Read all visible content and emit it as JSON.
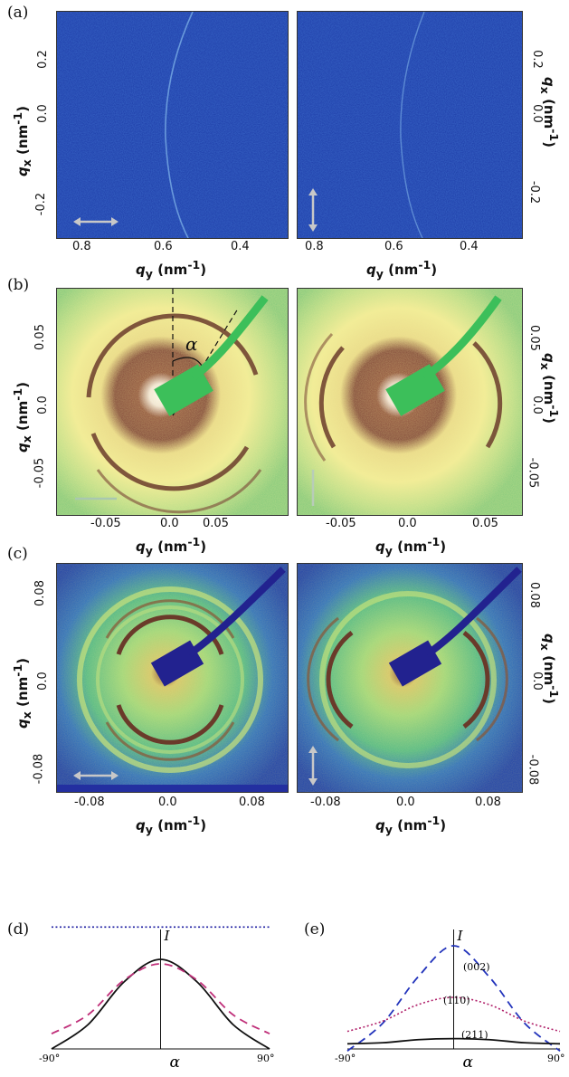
{
  "panels": {
    "a": "(a)",
    "b": "(b)",
    "c": "(c)",
    "d": "(d)",
    "e": "(e)"
  },
  "axis": {
    "qx_label": "q",
    "qx_sub": "x",
    "qy_label": "q",
    "qy_sub": "y",
    "unit": "(nm",
    "unit_sup": "-1",
    "unit_close": ")"
  },
  "row_a": {
    "y_ticks": [
      "0.2",
      "0.0",
      "-0.2"
    ],
    "x_ticks": [
      "0.8",
      "0.6",
      "0.4"
    ]
  },
  "row_b": {
    "y_ticks": [
      "0.05",
      "0.0",
      "-0.05"
    ],
    "x_ticks": [
      "-0.05",
      "0.0",
      "0.05"
    ],
    "angle_symbol": "α"
  },
  "row_c": {
    "y_ticks": [
      "0.08",
      "0.0",
      "-0.08"
    ],
    "x_ticks": [
      "-0.08",
      "0.0",
      "0.08"
    ]
  },
  "chart_data": [
    {
      "type": "line",
      "panel": "(d)",
      "xlabel": "α",
      "ylabel": "I",
      "x_ticks": [
        "-90°",
        "90°"
      ],
      "xlim": [
        -90,
        90
      ],
      "series": [
        {
          "style": "solid",
          "color": "#111111",
          "x": [
            -90,
            -60,
            -30,
            0,
            30,
            60,
            90
          ],
          "y": [
            0.0,
            0.27,
            0.75,
            1.0,
            0.75,
            0.27,
            0.0
          ]
        },
        {
          "style": "dashed",
          "color": "#c0307a",
          "x": [
            -90,
            -60,
            -30,
            0,
            30,
            60,
            90
          ],
          "y": [
            0.17,
            0.38,
            0.77,
            0.95,
            0.77,
            0.38,
            0.17
          ]
        },
        {
          "style": "dotted",
          "color": "#1a1aa0",
          "x": [
            -90,
            90
          ],
          "y": [
            1.36,
            1.36
          ]
        }
      ]
    },
    {
      "type": "line",
      "panel": "(e)",
      "xlabel": "α",
      "ylabel": "I",
      "x_ticks": [
        "-90°",
        "90°"
      ],
      "xlim": [
        -90,
        90
      ],
      "series": [
        {
          "name": "(002)",
          "style": "dashed",
          "color": "#2233bb",
          "x": [
            -90,
            -60,
            -30,
            0,
            30,
            60,
            90
          ],
          "y": [
            -0.02,
            0.25,
            0.7,
            1.0,
            0.7,
            0.25,
            -0.02
          ]
        },
        {
          "name": "(110)",
          "style": "dotted",
          "color": "#b0206a",
          "x": [
            -90,
            -60,
            -30,
            0,
            30,
            60,
            90
          ],
          "y": [
            0.17,
            0.27,
            0.43,
            0.5,
            0.43,
            0.27,
            0.17
          ]
        },
        {
          "name": "(211)",
          "style": "solid",
          "color": "#111111",
          "x": [
            -90,
            -60,
            -30,
            0,
            30,
            60,
            90
          ],
          "y": [
            0.05,
            0.06,
            0.09,
            0.1,
            0.09,
            0.06,
            0.05
          ]
        }
      ]
    }
  ]
}
